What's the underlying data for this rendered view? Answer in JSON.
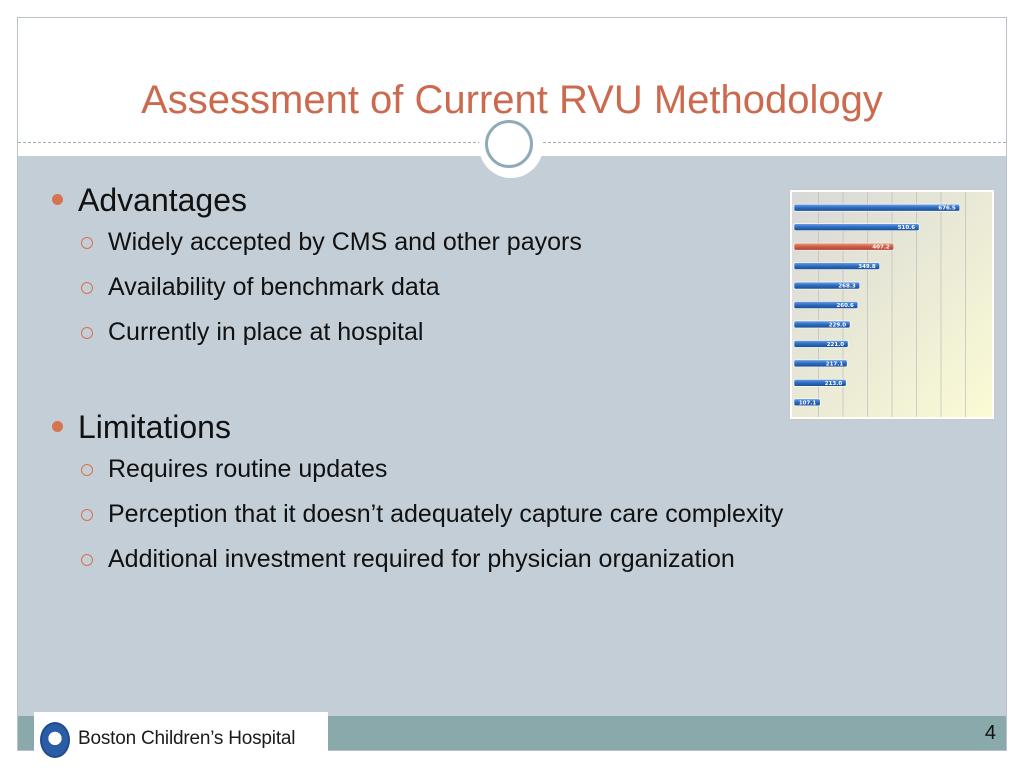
{
  "slide": {
    "title": "Assessment of Current RVU Methodology",
    "page_number": "4"
  },
  "content": {
    "sections": [
      {
        "heading": "Advantages",
        "items": [
          "Widely accepted by CMS and other payors",
          "Availability of benchmark data",
          "Currently in place at hospital"
        ]
      },
      {
        "heading": "Limitations",
        "items": [
          "Requires routine updates",
          "Perception that it doesn’t adequately capture care complexity",
          "Additional investment required for physician organization"
        ]
      }
    ]
  },
  "footer": {
    "logo_text": "Boston Children’s Hospital",
    "logo_icon": "hospital-logo-icon"
  },
  "colors": {
    "title": "#cc6a4f",
    "bullet_accent": "#d9724f",
    "content_background": "#c3ced6",
    "footer_bar": "#8aa9ab",
    "bar_blue": "#2f6fc2",
    "bar_highlight": "#d2634a"
  },
  "chart_data": {
    "type": "bar",
    "orientation": "horizontal",
    "values": [
      676.5,
      510.6,
      407.2,
      349.8,
      268.3,
      260.6,
      229.0,
      221.0,
      217.1,
      213.0,
      107.1
    ],
    "labels": [
      "676.5",
      "510.6",
      "407.2",
      "349.8",
      "268.3",
      "260.6",
      "229.0",
      "221.0",
      "217.1",
      "213.0",
      "107.1"
    ],
    "highlight_index": 2,
    "grid": true,
    "xlim": [
      0,
      800
    ]
  }
}
